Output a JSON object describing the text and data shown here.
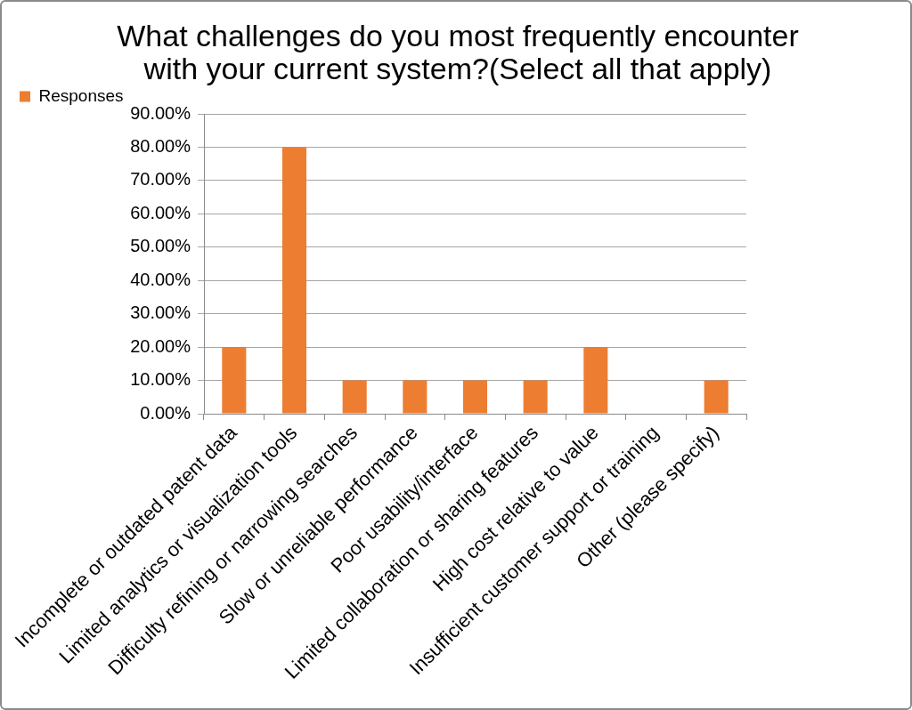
{
  "chart_data": {
    "type": "bar",
    "title": "What challenges do you most frequently encounter with your current system?(Select all that apply)",
    "categories": [
      "Incomplete or outdated patent data",
      "Limited analytics or visualization tools",
      "Difficulty refining or narrowing searches",
      "Slow or unreliable performance",
      "Poor usability/interface",
      "Limited collaboration or sharing features",
      "High cost relative to value",
      "Insufficient customer support or training",
      "Other (please specify)"
    ],
    "series": [
      {
        "name": "Responses",
        "color": "#ed7d31",
        "values": [
          20,
          80,
          10,
          10,
          10,
          10,
          20,
          0,
          10
        ]
      }
    ],
    "ylim": [
      0,
      90
    ],
    "yticks": [
      {
        "value": 0,
        "label": "0.00%"
      },
      {
        "value": 10,
        "label": "10.00%"
      },
      {
        "value": 20,
        "label": "20.00%"
      },
      {
        "value": 30,
        "label": "30.00%"
      },
      {
        "value": 40,
        "label": "40.00%"
      },
      {
        "value": 50,
        "label": "50.00%"
      },
      {
        "value": 60,
        "label": "60.00%"
      },
      {
        "value": 70,
        "label": "70.00%"
      },
      {
        "value": 80,
        "label": "80.00%"
      },
      {
        "value": 90,
        "label": "90.00%"
      }
    ],
    "grid": "y",
    "legend": "top left"
  }
}
